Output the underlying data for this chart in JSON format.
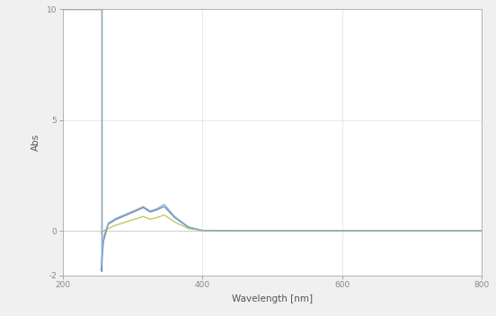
{
  "title": "",
  "xlabel": "Wavelength [nm]",
  "ylabel": "Abs",
  "xlim": [
    200,
    800
  ],
  "ylim": [
    -2,
    10
  ],
  "yticks": [
    -2,
    0,
    5,
    10
  ],
  "ytick_labels": [
    "-2",
    "0",
    "5",
    "10"
  ],
  "xticks": [
    200,
    400,
    600,
    800
  ],
  "background_color": "#f0f0f0",
  "plot_bg_color": "#ffffff",
  "series": [
    {
      "color": "#6688bb",
      "linewidth": 0.9,
      "points_x": [
        200,
        250,
        255,
        255,
        258,
        265,
        275,
        290,
        305,
        315,
        325,
        335,
        345,
        360,
        380,
        400,
        450,
        500,
        600,
        800
      ],
      "points_y": [
        10,
        10,
        10,
        -1.8,
        -0.5,
        0.3,
        0.5,
        0.7,
        0.9,
        1.05,
        0.85,
        0.95,
        1.1,
        0.6,
        0.15,
        0.02,
        0.0,
        0.0,
        0.0,
        0.0
      ]
    },
    {
      "color": "#b8c850",
      "linewidth": 0.9,
      "points_x": [
        200,
        250,
        255,
        255,
        258,
        265,
        275,
        290,
        305,
        315,
        325,
        335,
        345,
        360,
        380,
        400,
        450,
        500,
        600,
        800
      ],
      "points_y": [
        10,
        10,
        10,
        -0.1,
        0.0,
        0.1,
        0.25,
        0.4,
        0.55,
        0.65,
        0.52,
        0.6,
        0.72,
        0.4,
        0.1,
        0.01,
        0.0,
        0.0,
        0.0,
        0.0
      ]
    },
    {
      "color": "#88aacc",
      "linewidth": 0.9,
      "points_x": [
        200,
        250,
        255,
        255,
        258,
        265,
        275,
        290,
        305,
        315,
        325,
        335,
        345,
        360,
        380,
        400,
        450,
        500,
        600,
        800
      ],
      "points_y": [
        10,
        10,
        10,
        -1.5,
        -0.3,
        0.35,
        0.55,
        0.75,
        0.95,
        1.1,
        0.9,
        1.0,
        1.2,
        0.65,
        0.18,
        0.02,
        0.0,
        0.0,
        0.0,
        0.0
      ]
    }
  ]
}
